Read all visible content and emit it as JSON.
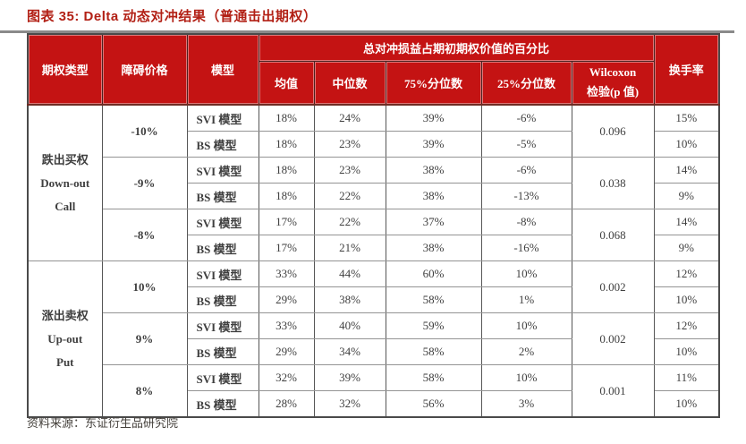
{
  "page": {
    "title": "图表 35: Delta 动态对冲结果（普通击出期权）"
  },
  "source": {
    "label": "资料来源：",
    "name": "东证衍生品研究院"
  },
  "colors": {
    "header_bg": "#c41313",
    "title_red": "#b22015",
    "body_text": "#3f3f3f"
  },
  "table": {
    "headers": {
      "option_type": "期权类型",
      "barrier_price": "障碍价格",
      "model": "模型",
      "group": "总对冲损益占期初期权价值的百分比",
      "mean": "均值",
      "median": "中位数",
      "p75": "75%分位数",
      "p25": "25%分位数",
      "wilcoxon_line1": "Wilcoxon",
      "wilcoxon_line2": "检验(p 值)",
      "turnover": "换手率"
    },
    "sections": [
      {
        "type_lines": [
          "跌出买权",
          "Down-out",
          "Call"
        ],
        "groups": [
          {
            "barrier": "-10%",
            "wilcoxon": "0.096",
            "rows": [
              {
                "model": "SVI 模型",
                "mean": "18%",
                "median": "24%",
                "p75": "39%",
                "p25": "-6%",
                "turnover": "15%"
              },
              {
                "model": "BS 模型",
                "mean": "18%",
                "median": "23%",
                "p75": "39%",
                "p25": "-5%",
                "turnover": "10%"
              }
            ]
          },
          {
            "barrier": "-9%",
            "wilcoxon": "0.038",
            "rows": [
              {
                "model": "SVI 模型",
                "mean": "18%",
                "median": "23%",
                "p75": "38%",
                "p25": "-6%",
                "turnover": "14%"
              },
              {
                "model": "BS 模型",
                "mean": "18%",
                "median": "22%",
                "p75": "38%",
                "p25": "-13%",
                "turnover": "9%"
              }
            ]
          },
          {
            "barrier": "-8%",
            "wilcoxon": "0.068",
            "rows": [
              {
                "model": "SVI 模型",
                "mean": "17%",
                "median": "22%",
                "p75": "37%",
                "p25": "-8%",
                "turnover": "14%"
              },
              {
                "model": "BS 模型",
                "mean": "17%",
                "median": "21%",
                "p75": "38%",
                "p25": "-16%",
                "turnover": "9%"
              }
            ]
          }
        ]
      },
      {
        "type_lines": [
          "涨出卖权",
          "Up-out",
          "Put"
        ],
        "groups": [
          {
            "barrier": "10%",
            "wilcoxon": "0.002",
            "rows": [
              {
                "model": "SVI 模型",
                "mean": "33%",
                "median": "44%",
                "p75": "60%",
                "p25": "10%",
                "turnover": "12%"
              },
              {
                "model": "BS 模型",
                "mean": "29%",
                "median": "38%",
                "p75": "58%",
                "p25": "1%",
                "turnover": "10%"
              }
            ]
          },
          {
            "barrier": "9%",
            "wilcoxon": "0.002",
            "rows": [
              {
                "model": "SVI 模型",
                "mean": "33%",
                "median": "40%",
                "p75": "59%",
                "p25": "10%",
                "turnover": "12%"
              },
              {
                "model": "BS 模型",
                "mean": "29%",
                "median": "34%",
                "p75": "58%",
                "p25": "2%",
                "turnover": "10%"
              }
            ]
          },
          {
            "barrier": "8%",
            "wilcoxon": "0.001",
            "rows": [
              {
                "model": "SVI 模型",
                "mean": "32%",
                "median": "39%",
                "p75": "58%",
                "p25": "10%",
                "turnover": "11%"
              },
              {
                "model": "BS 模型",
                "mean": "28%",
                "median": "32%",
                "p75": "56%",
                "p25": "3%",
                "turnover": "10%"
              }
            ]
          }
        ]
      }
    ]
  }
}
